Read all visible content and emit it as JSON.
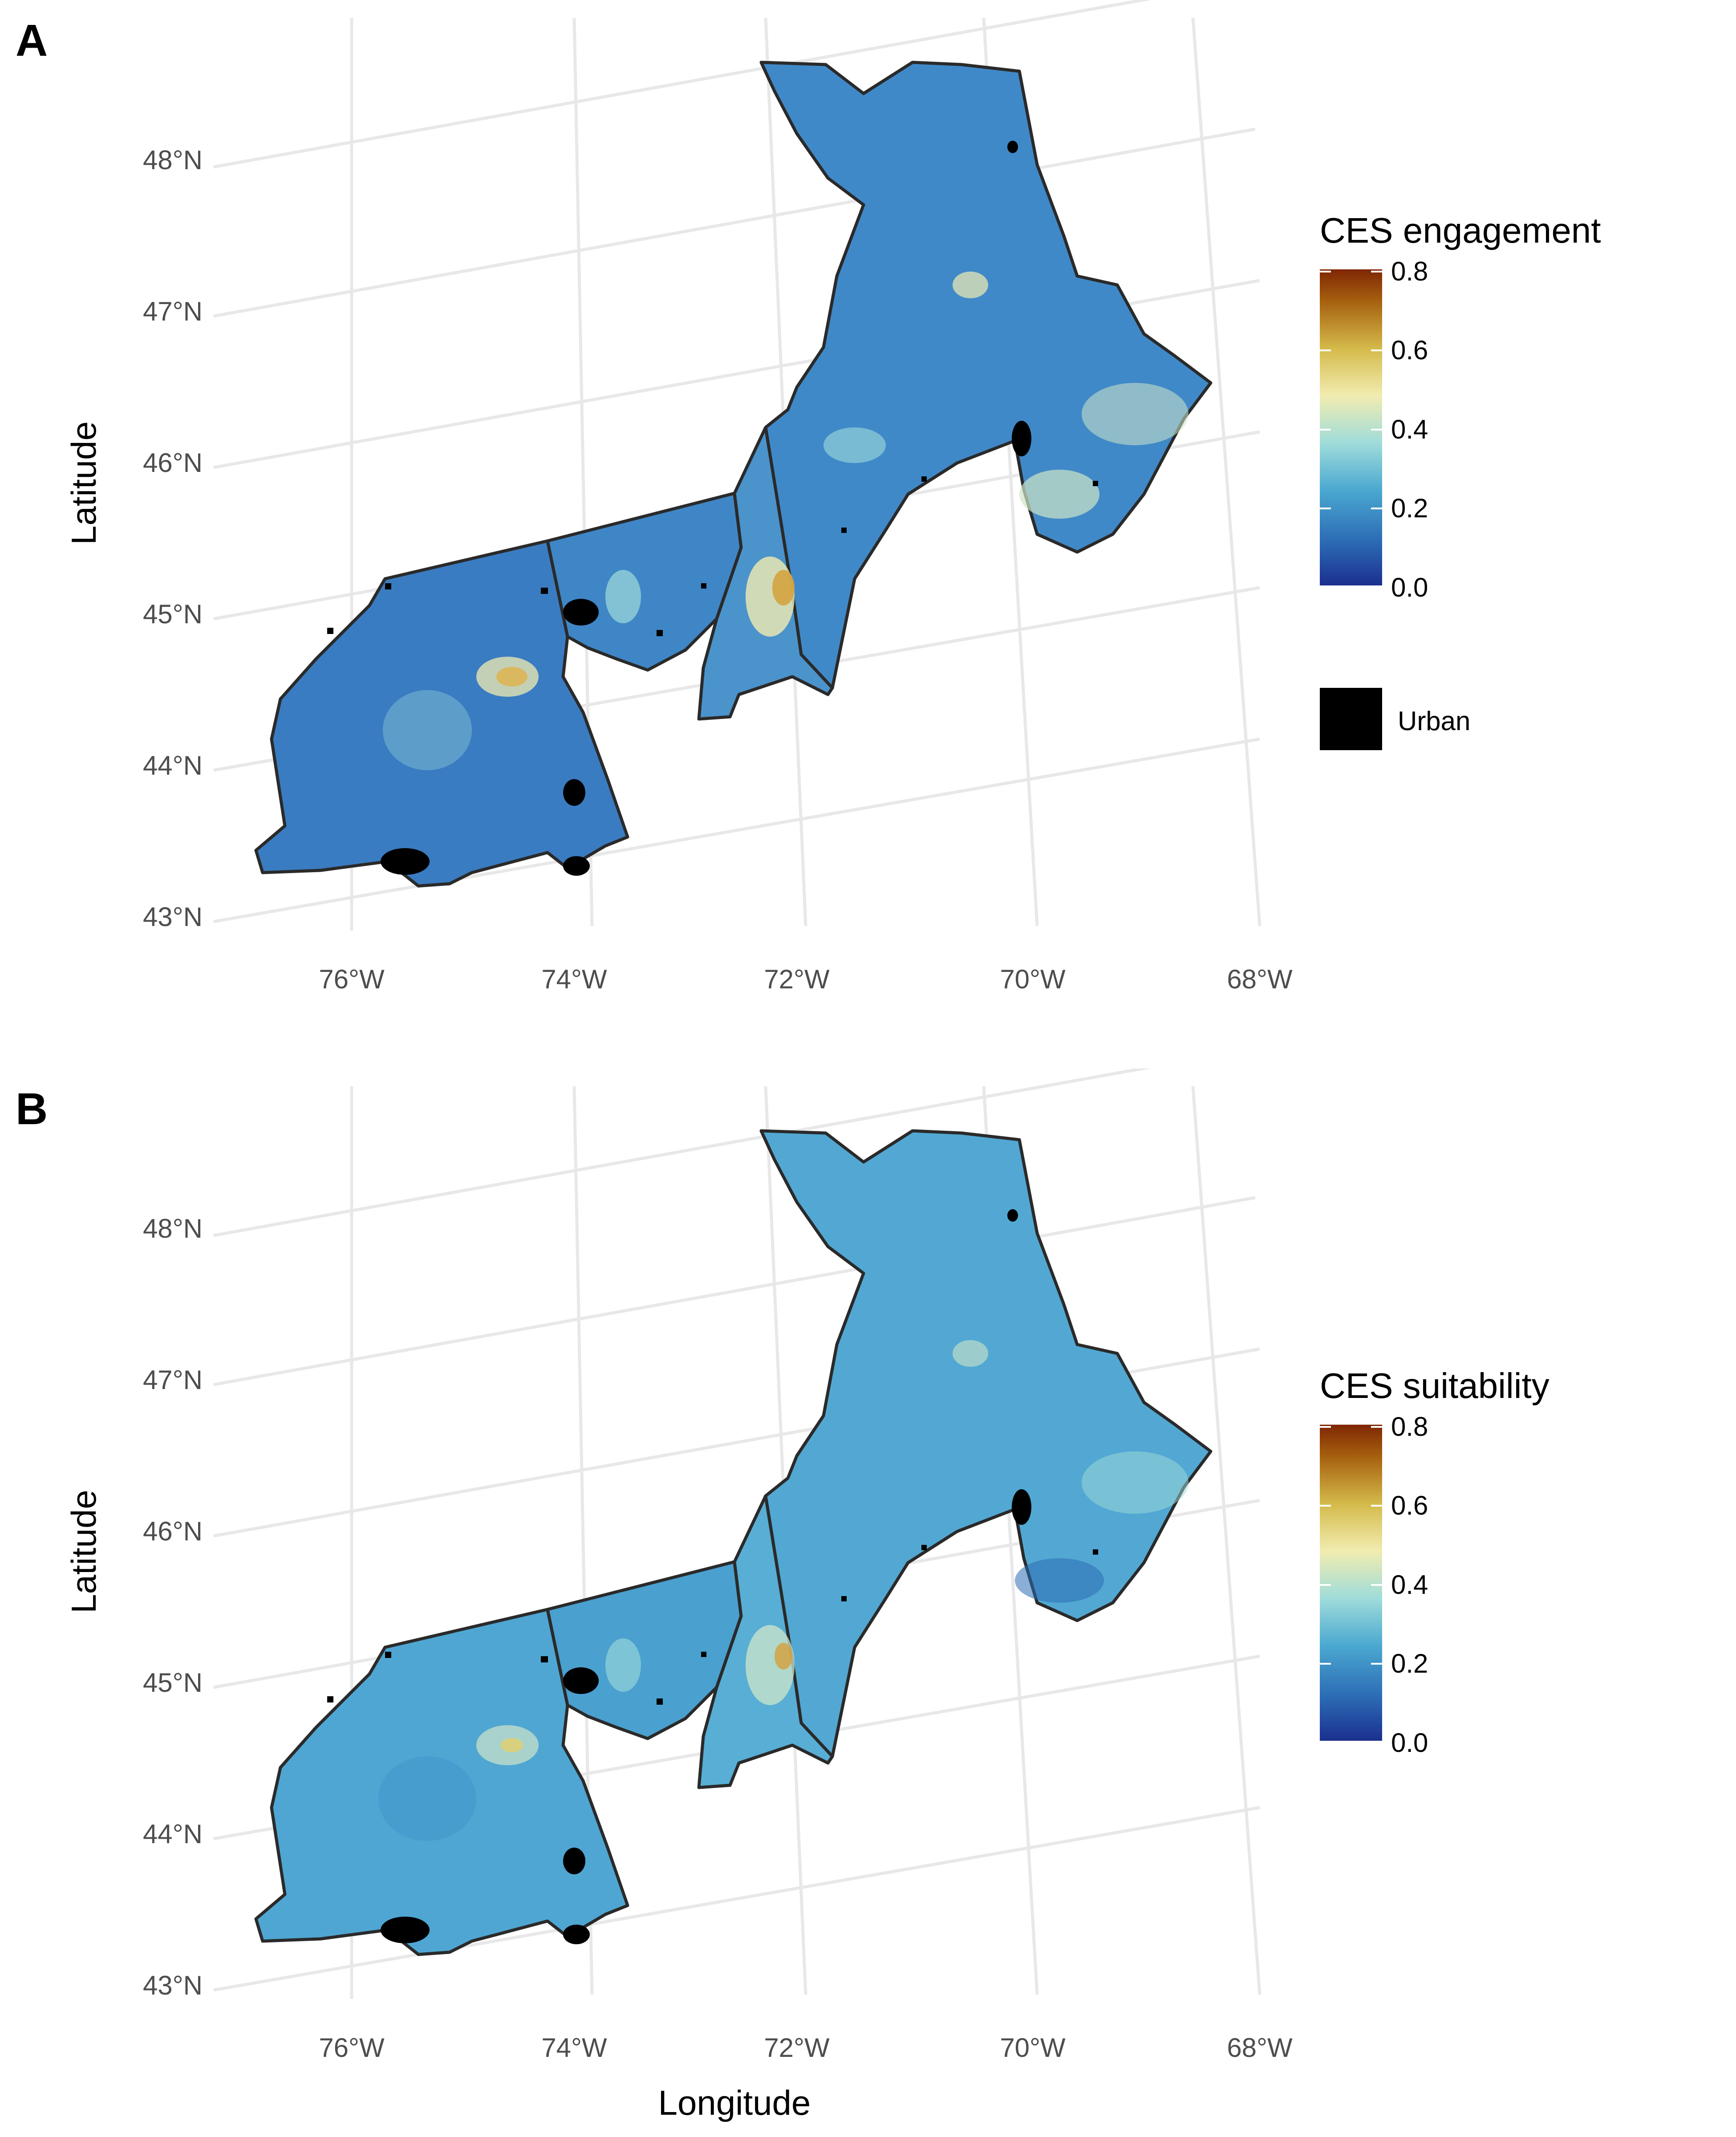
{
  "panels": [
    {
      "letter": "A",
      "lat_labels": [
        "48°N",
        "47°N",
        "46°N",
        "45°N",
        "44°N",
        "43°N"
      ],
      "lon_labels": [
        "76°W",
        "74°W",
        "72°W",
        "70°W",
        "68°W"
      ],
      "ylabel": "Latitude",
      "xlabel": "",
      "legend_title": "CES engagement",
      "legend_ticks": [
        "0.8",
        "0.6",
        "0.4",
        "0.2",
        "0.0"
      ],
      "urban_label": "Urban"
    },
    {
      "letter": "B",
      "lat_labels": [
        "48°N",
        "47°N",
        "46°N",
        "45°N",
        "44°N",
        "43°N"
      ],
      "lon_labels": [
        "76°W",
        "74°W",
        "72°W",
        "70°W",
        "68°W"
      ],
      "ylabel": "Latitude",
      "xlabel": "Longitude",
      "legend_title": "CES suitability",
      "legend_ticks": [
        "0.8",
        "0.6",
        "0.4",
        "0.2",
        "0.0"
      ],
      "urban_label": ""
    }
  ],
  "colorscale": [
    "#1b2f8f",
    "#2c6cb5",
    "#4aa8d0",
    "#9fdcda",
    "#f1ecb0",
    "#d4ba4a",
    "#a6600f",
    "#7f2604"
  ],
  "fill_colors": {
    "engagement": "#3a7cc2",
    "suitability": "#4fa6d2"
  },
  "urban_color": "#000000",
  "border_color": "#2a2a2a"
}
